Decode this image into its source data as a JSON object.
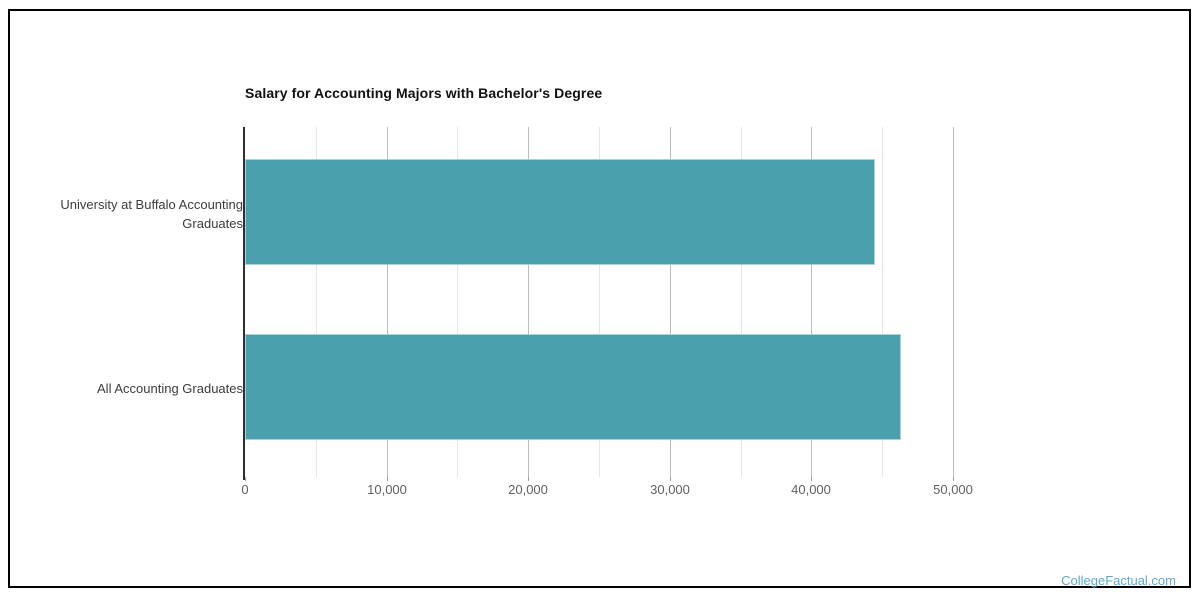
{
  "chart_data": {
    "type": "bar",
    "orientation": "horizontal",
    "title": "Salary for Accounting Majors with Bachelor's Degree",
    "categories": [
      "University at Buffalo Accounting Graduates",
      "All Accounting Graduates"
    ],
    "values": [
      44500,
      46300
    ],
    "xlabel": "",
    "ylabel": "",
    "xlim": [
      0,
      50000
    ],
    "x_ticks": [
      0,
      10000,
      20000,
      30000,
      40000,
      50000
    ],
    "x_tick_labels": [
      "0",
      "10,000",
      "20,000",
      "30,000",
      "40,000",
      "50,000"
    ],
    "minor_tick_step": 5000,
    "grid": true,
    "legend": "none",
    "bar_color": "#4AA0AD",
    "axis_line_color": "#2f2f2f",
    "major_grid_color": "#bdbdbd",
    "minor_grid_color": "#e6e6e6"
  },
  "watermark": {
    "text": "CollegeFactual.com",
    "color": "#5EA9CF"
  }
}
